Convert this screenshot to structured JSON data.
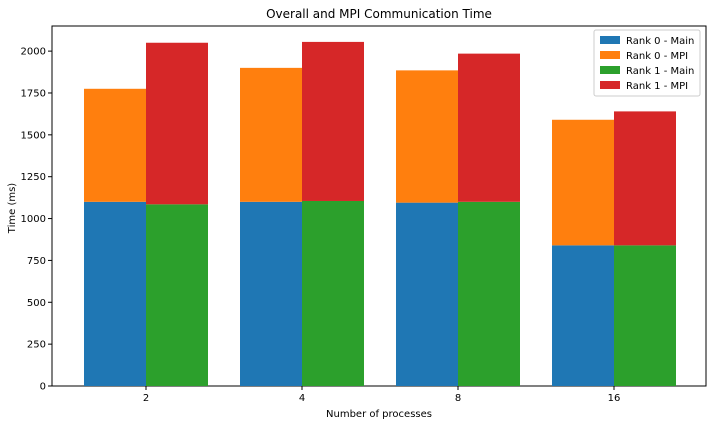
{
  "chart_data": {
    "type": "bar",
    "title": "Overall and MPI Communication Time",
    "xlabel": "Number of processes",
    "ylabel": "Time (ms)",
    "categories": [
      "2",
      "4",
      "8",
      "16"
    ],
    "ylim": [
      0,
      2150
    ],
    "yticks": [
      0,
      250,
      500,
      750,
      1000,
      1250,
      1500,
      1750,
      2000
    ],
    "grid": false,
    "legend_position": "top-right",
    "series": [
      {
        "name": "Rank 0 - Main",
        "color": "#1f77b4",
        "values": [
          1100,
          1100,
          1095,
          840
        ]
      },
      {
        "name": "Rank 0 - MPI",
        "color": "#ff7f0e",
        "values": [
          675,
          800,
          790,
          750
        ]
      },
      {
        "name": "Rank 1 - Main",
        "color": "#2ca02c",
        "values": [
          1085,
          1105,
          1100,
          840
        ]
      },
      {
        "name": "Rank 1 - MPI",
        "color": "#d62728",
        "values": [
          965,
          950,
          885,
          800
        ]
      }
    ]
  }
}
